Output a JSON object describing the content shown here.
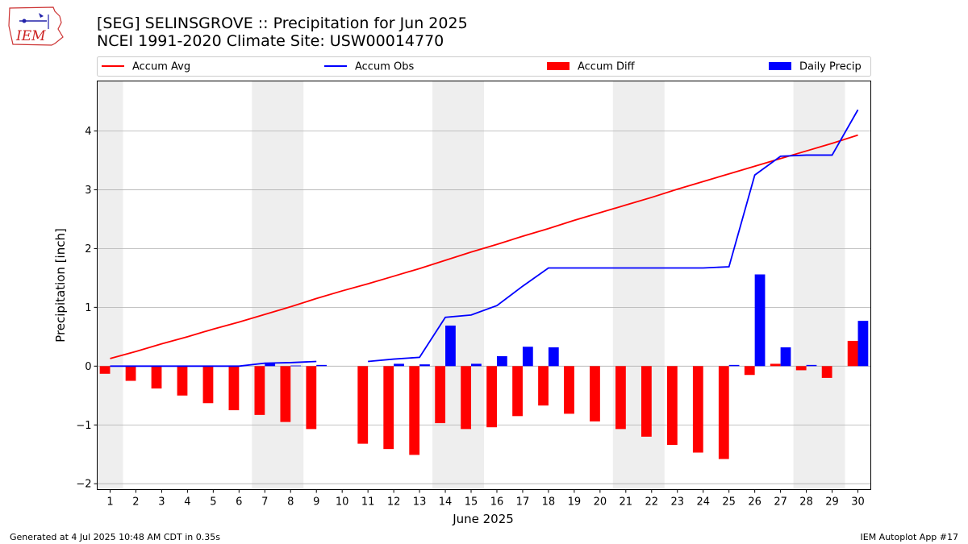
{
  "header": {
    "title_line1": "[SEG] SELINSGROVE :: Precipitation for Jun 2025",
    "title_line2": "NCEI 1991-2020 Climate Site: USW00014770"
  },
  "logo": {
    "text": "IEM"
  },
  "footer": {
    "left": "Generated at 4 Jul 2025 10:48 AM CDT in 0.35s",
    "right": "IEM Autoplot App #17"
  },
  "colors": {
    "avg": "#ff0000",
    "obs": "#0000ff",
    "diff": "#ff0000",
    "daily": "#0000ff",
    "weekend": "#eeeeee",
    "grid": "#b0b0b0"
  },
  "chart_data": {
    "type": "bar",
    "title": "[SEG] SELINSGROVE :: Precipitation for Jun 2025",
    "xlabel": "June 2025",
    "ylabel": "Precipitation [inch]",
    "ylim": [
      -2.1,
      4.85
    ],
    "xlim": [
      0.5,
      30.5
    ],
    "yticks": [
      -2,
      -1,
      0,
      1,
      2,
      3,
      4
    ],
    "grid": true,
    "legend": {
      "placement": "top",
      "entries": [
        "Accum Avg",
        "Accum Obs",
        "Accum Diff",
        "Daily Precip"
      ]
    },
    "days": [
      1,
      2,
      3,
      4,
      5,
      6,
      7,
      8,
      9,
      10,
      11,
      12,
      13,
      14,
      15,
      16,
      17,
      18,
      19,
      20,
      21,
      22,
      23,
      24,
      25,
      26,
      27,
      28,
      29,
      30
    ],
    "shaded_days": [
      [
        1,
        1
      ],
      [
        7,
        8
      ],
      [
        14,
        15
      ],
      [
        21,
        22
      ],
      [
        28,
        29
      ]
    ],
    "series": [
      {
        "name": "Accum Avg",
        "kind": "line",
        "values": [
          0.13,
          0.25,
          0.38,
          0.5,
          0.63,
          0.75,
          0.88,
          1.01,
          1.15,
          1.28,
          1.4,
          1.53,
          1.66,
          1.8,
          1.94,
          2.07,
          2.21,
          2.34,
          2.48,
          2.61,
          2.74,
          2.87,
          3.01,
          3.14,
          3.27,
          3.4,
          3.53,
          3.66,
          3.79,
          3.93
        ]
      },
      {
        "name": "Accum Obs",
        "kind": "line",
        "values": [
          0,
          0,
          0,
          0,
          0,
          0,
          0.05,
          0.06,
          0.08,
          null,
          0.08,
          0.12,
          0.15,
          0.83,
          0.87,
          1.03,
          1.36,
          1.67,
          1.67,
          1.67,
          1.67,
          1.67,
          1.67,
          1.67,
          1.69,
          3.25,
          3.57,
          3.59,
          3.59,
          4.36
        ]
      },
      {
        "name": "Accum Diff",
        "kind": "bar",
        "values": [
          -0.13,
          -0.25,
          -0.38,
          -0.5,
          -0.63,
          -0.75,
          -0.83,
          -0.95,
          -1.07,
          null,
          -1.32,
          -1.41,
          -1.51,
          -0.97,
          -1.07,
          -1.04,
          -0.85,
          -0.67,
          -0.81,
          -0.94,
          -1.07,
          -1.2,
          -1.34,
          -1.47,
          -1.58,
          -0.15,
          0.04,
          -0.07,
          -0.2,
          0.43
        ]
      },
      {
        "name": "Daily Precip",
        "kind": "bar",
        "values": [
          0,
          0,
          0,
          0,
          0,
          0,
          0.05,
          0.01,
          0.02,
          null,
          0,
          0.04,
          0.03,
          0.69,
          0.04,
          0.17,
          0.33,
          0.32,
          0,
          0,
          0,
          0,
          0,
          0,
          0.02,
          1.56,
          0.32,
          0.02,
          0,
          0.77
        ]
      }
    ]
  }
}
